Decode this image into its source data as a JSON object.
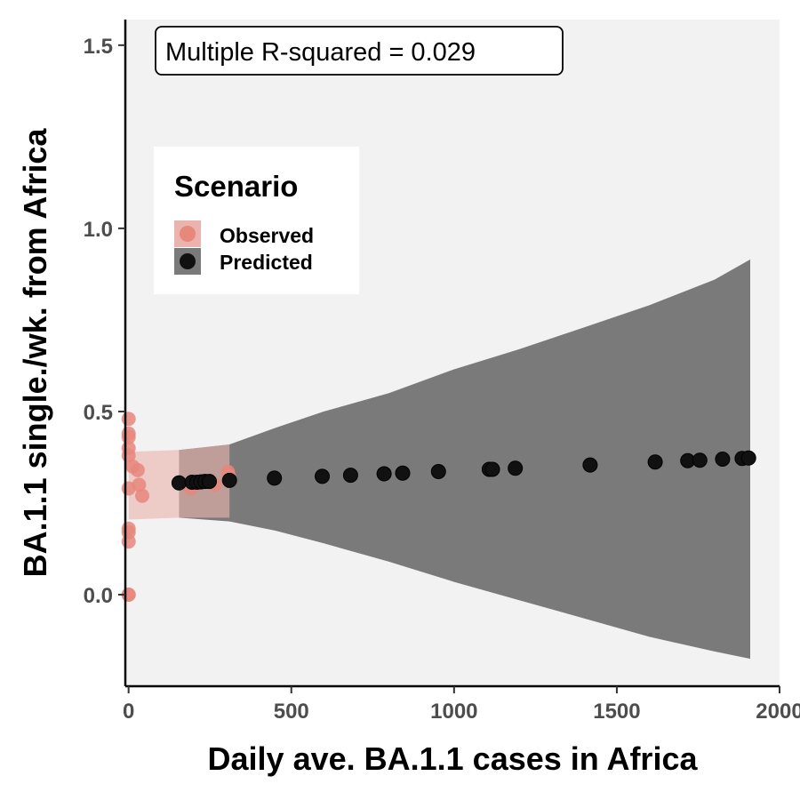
{
  "chart_data": {
    "type": "scatter",
    "xlabel": "Daily ave. BA.1.1 cases in Africa",
    "ylabel": "BA.1.1 single./wk. from Africa",
    "xlim": [
      -10,
      2000
    ],
    "ylim": [
      -0.25,
      1.57
    ],
    "x_ticks": [
      0,
      500,
      1000,
      1500,
      2000
    ],
    "y_ticks": [
      0.0,
      0.5,
      1.0,
      1.5
    ],
    "x_tick_labels": [
      "0",
      "500",
      "1000",
      "1500",
      "2000"
    ],
    "y_tick_labels": [
      "0.0",
      "0.5",
      "1.0",
      "1.5"
    ],
    "annotation": "Multiple R-squared = 0.029",
    "legend": {
      "title": "Scenario",
      "position": "top-left",
      "entries": [
        "Observed",
        "Predicted"
      ]
    },
    "series": [
      {
        "name": "Observed",
        "color": "#e8877c",
        "ribbon_color": "#eab3ad",
        "points": [
          [
            0,
            0.48
          ],
          [
            0,
            0.44
          ],
          [
            0,
            0.43
          ],
          [
            0,
            0.4
          ],
          [
            0,
            0.38
          ],
          [
            0,
            0.29
          ],
          [
            0,
            0.18
          ],
          [
            0,
            0.17
          ],
          [
            0,
            0.145
          ],
          [
            0,
            0.0
          ],
          [
            0,
            0.0
          ],
          [
            12,
            0.35
          ],
          [
            28,
            0.34
          ],
          [
            32,
            0.3
          ],
          [
            42,
            0.27
          ],
          [
            190,
            0.29
          ],
          [
            205,
            0.3
          ],
          [
            265,
            0.3
          ],
          [
            305,
            0.335
          ],
          [
            308,
            0.325
          ]
        ],
        "ribbon": {
          "x": [
            0,
            155,
            310
          ],
          "lower": [
            0.205,
            0.21,
            0.21
          ],
          "upper": [
            0.39,
            0.395,
            0.41
          ]
        }
      },
      {
        "name": "Predicted",
        "color": "#111111",
        "ribbon_color": "#7a7a7a",
        "points": [
          [
            155,
            0.305
          ],
          [
            195,
            0.307
          ],
          [
            210,
            0.307
          ],
          [
            222,
            0.308
          ],
          [
            235,
            0.309
          ],
          [
            248,
            0.309
          ],
          [
            310,
            0.312
          ],
          [
            448,
            0.318
          ],
          [
            595,
            0.323
          ],
          [
            682,
            0.326
          ],
          [
            785,
            0.33
          ],
          [
            842,
            0.332
          ],
          [
            952,
            0.336
          ],
          [
            1108,
            0.342
          ],
          [
            1118,
            0.342
          ],
          [
            1188,
            0.345
          ],
          [
            1418,
            0.354
          ],
          [
            1618,
            0.362
          ],
          [
            1718,
            0.366
          ],
          [
            1755,
            0.367
          ],
          [
            1825,
            0.37
          ],
          [
            1885,
            0.372
          ],
          [
            1905,
            0.373
          ]
        ],
        "ribbon": {
          "x": [
            155,
            310,
            450,
            600,
            800,
            1000,
            1200,
            1400,
            1600,
            1800,
            1910
          ],
          "lower": [
            0.21,
            0.2,
            0.175,
            0.14,
            0.09,
            0.035,
            -0.015,
            -0.065,
            -0.115,
            -0.155,
            -0.175
          ],
          "upper": [
            0.395,
            0.41,
            0.455,
            0.5,
            0.55,
            0.615,
            0.67,
            0.73,
            0.79,
            0.86,
            0.915
          ]
        }
      }
    ]
  }
}
